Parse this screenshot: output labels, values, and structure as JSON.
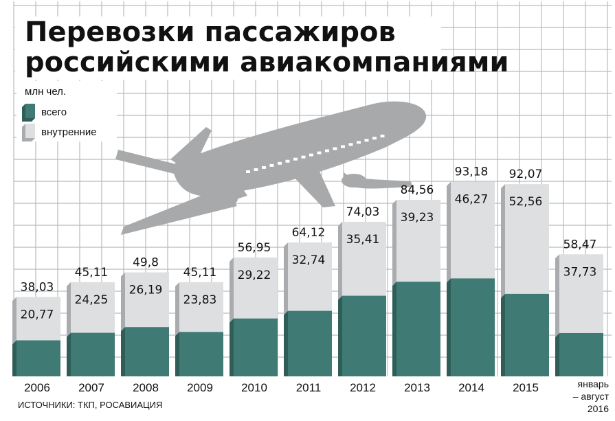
{
  "colors": {
    "total": "#3f7a74",
    "total_side": "#2f5e58",
    "domestic": "#dedfe0",
    "domestic_side": "#a9abae",
    "grid": "#b8babc",
    "plane": "#a8a9ab"
  },
  "chart_data": {
    "type": "bar",
    "title": "Перевозки пассажиров российскими авиакомпаниями",
    "title_lines": [
      "Перевозки пассажиров",
      "российскими авиакомпаниями"
    ],
    "unit": "млн чел.",
    "legend": {
      "position": "top-left",
      "total_label": "всего",
      "domestic_label": "внутренние"
    },
    "categories": [
      "2006",
      "2007",
      "2008",
      "2009",
      "2010",
      "2011",
      "2012",
      "2013",
      "2014",
      "2015",
      "январь – август 2016"
    ],
    "last_category_lines": [
      "январь",
      "– август",
      "2016"
    ],
    "series": [
      {
        "name": "всего",
        "values": [
          38.03,
          45.11,
          49.8,
          45.11,
          56.95,
          64.12,
          74.03,
          84.56,
          93.18,
          92.07,
          58.47
        ],
        "labels": [
          "38,03",
          "45,11",
          "49,8",
          "45,11",
          "56,95",
          "64,12",
          "74,03",
          "84,56",
          "93,18",
          "92,07",
          "58,47"
        ]
      },
      {
        "name": "внутренние",
        "values": [
          20.77,
          24.25,
          26.19,
          23.83,
          29.22,
          32.74,
          35.41,
          39.23,
          46.27,
          52.56,
          37.73
        ],
        "labels": [
          "20,77",
          "24,25",
          "26,19",
          "23,83",
          "29,22",
          "32,74",
          "35,41",
          "39,23",
          "46,27",
          "52,56",
          "37,73"
        ]
      }
    ],
    "ylim": [
      0,
      100
    ],
    "grid": true
  },
  "source_text": "ИСТОЧНИКИ: ТКП, РОСАВИАЦИЯ"
}
